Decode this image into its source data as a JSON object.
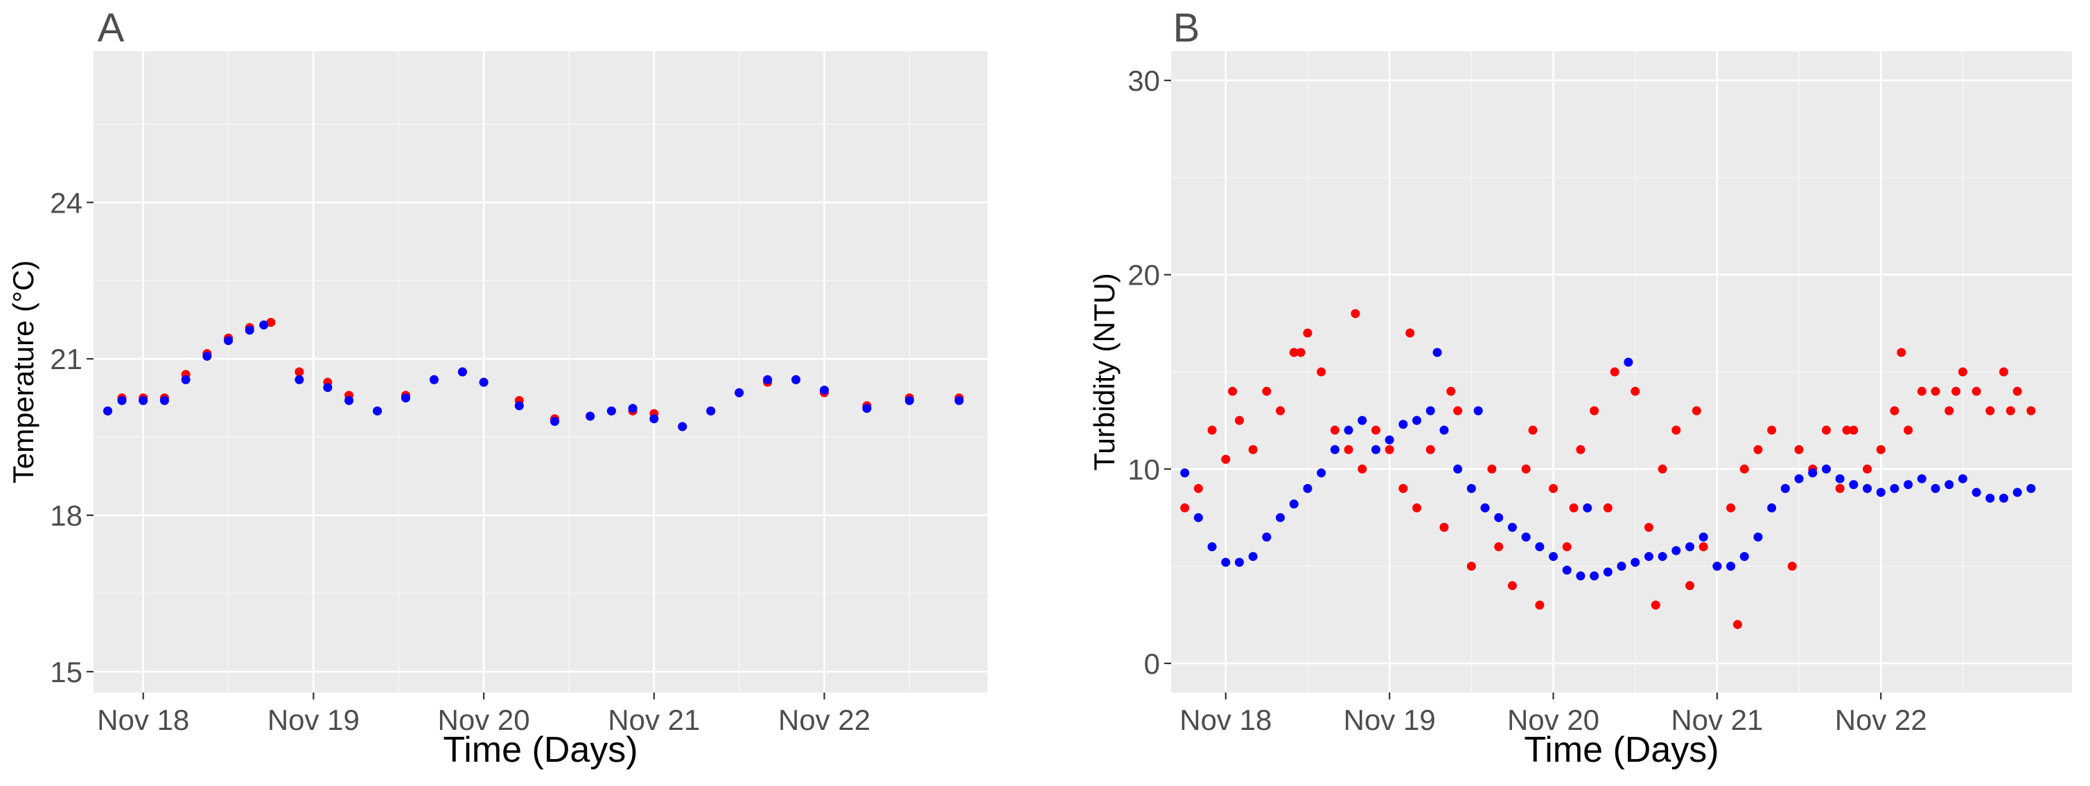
{
  "chart_data": [
    {
      "panel": "A",
      "type": "scatter",
      "xlabel": "Time (Days)",
      "ylabel": "Temperature (°C)",
      "x_type": "date",
      "xlim": [
        "2021-11-17 17:00",
        "2021-11-22 23:00"
      ],
      "ylim": [
        14.6,
        26.9
      ],
      "xticks": [
        {
          "value": "2021-11-18 00:00",
          "label": "Nov 18"
        },
        {
          "value": "2021-11-19 00:00",
          "label": "Nov 19"
        },
        {
          "value": "2021-11-20 00:00",
          "label": "Nov 20"
        },
        {
          "value": "2021-11-21 00:00",
          "label": "Nov 21"
        },
        {
          "value": "2021-11-22 00:00",
          "label": "Nov 22"
        }
      ],
      "yticks": [
        {
          "value": 15,
          "label": "15"
        },
        {
          "value": 18,
          "label": "18"
        },
        {
          "value": 21,
          "label": "21"
        },
        {
          "value": 24,
          "label": "24"
        }
      ],
      "grid": true,
      "legend": "none",
      "series": [
        {
          "color": "#ff0000",
          "x": [
            "2021-11-17 19:00",
            "2021-11-17 21:00",
            "2021-11-18 00:00",
            "2021-11-18 03:00",
            "2021-11-18 06:00",
            "2021-11-18 09:00",
            "2021-11-18 12:00",
            "2021-11-18 15:00",
            "2021-11-18 18:00",
            "2021-11-18 22:00",
            "2021-11-19 02:00",
            "2021-11-19 05:00",
            "2021-11-19 09:00",
            "2021-11-19 13:00",
            "2021-11-19 17:00",
            "2021-11-19 21:00",
            "2021-11-20 00:00",
            "2021-11-20 05:00",
            "2021-11-20 10:00",
            "2021-11-20 15:00",
            "2021-11-20 18:00",
            "2021-11-20 21:00",
            "2021-11-21 00:00",
            "2021-11-21 04:00",
            "2021-11-21 08:00",
            "2021-11-21 12:00",
            "2021-11-21 16:00",
            "2021-11-21 20:00",
            "2021-11-22 00:00",
            "2021-11-22 06:00",
            "2021-11-22 12:00",
            "2021-11-22 19:00"
          ],
          "y": [
            20.0,
            20.25,
            20.25,
            20.25,
            20.7,
            21.1,
            21.4,
            21.6,
            21.7,
            20.75,
            20.55,
            20.3,
            20.0,
            20.3,
            20.6,
            20.75,
            20.55,
            20.2,
            19.85,
            19.9,
            20.0,
            20.0,
            19.95,
            19.7,
            20.0,
            20.35,
            20.55,
            20.6,
            20.35,
            20.1,
            20.25,
            20.25
          ]
        },
        {
          "color": "#0000ff",
          "x": [
            "2021-11-17 19:00",
            "2021-11-17 21:00",
            "2021-11-18 00:00",
            "2021-11-18 03:00",
            "2021-11-18 06:00",
            "2021-11-18 09:00",
            "2021-11-18 12:00",
            "2021-11-18 15:00",
            "2021-11-18 17:00",
            "2021-11-18 22:00",
            "2021-11-19 02:00",
            "2021-11-19 05:00",
            "2021-11-19 09:00",
            "2021-11-19 13:00",
            "2021-11-19 17:00",
            "2021-11-19 21:00",
            "2021-11-20 00:00",
            "2021-11-20 05:00",
            "2021-11-20 10:00",
            "2021-11-20 15:00",
            "2021-11-20 18:00",
            "2021-11-20 21:00",
            "2021-11-21 00:00",
            "2021-11-21 04:00",
            "2021-11-21 08:00",
            "2021-11-21 12:00",
            "2021-11-21 16:00",
            "2021-11-21 20:00",
            "2021-11-22 00:00",
            "2021-11-22 06:00",
            "2021-11-22 12:00",
            "2021-11-22 19:00"
          ],
          "y": [
            20.0,
            20.2,
            20.2,
            20.2,
            20.6,
            21.05,
            21.35,
            21.55,
            21.65,
            20.6,
            20.45,
            20.2,
            20.0,
            20.25,
            20.6,
            20.75,
            20.55,
            20.1,
            19.8,
            19.9,
            20.0,
            20.05,
            19.85,
            19.7,
            20.0,
            20.35,
            20.6,
            20.6,
            20.4,
            20.05,
            20.2,
            20.2
          ]
        }
      ]
    },
    {
      "panel": "B",
      "type": "scatter",
      "xlabel": "Time (Days)",
      "ylabel": "Turbidity (NTU)",
      "x_type": "date",
      "xlim": [
        "2021-11-17 16:00",
        "2021-11-23 04:00"
      ],
      "ylim": [
        -1.5,
        31.5
      ],
      "xticks": [
        {
          "value": "2021-11-18 00:00",
          "label": "Nov 18"
        },
        {
          "value": "2021-11-19 00:00",
          "label": "Nov 19"
        },
        {
          "value": "2021-11-20 00:00",
          "label": "Nov 20"
        },
        {
          "value": "2021-11-21 00:00",
          "label": "Nov 21"
        },
        {
          "value": "2021-11-22 00:00",
          "label": "Nov 22"
        }
      ],
      "yticks": [
        {
          "value": 0,
          "label": "0"
        },
        {
          "value": 10,
          "label": "10"
        },
        {
          "value": 20,
          "label": "20"
        },
        {
          "value": 30,
          "label": "30"
        }
      ],
      "grid": true,
      "legend": "none",
      "series": [
        {
          "color": "#ff0000",
          "x": [
            "2021-11-17 18:00",
            "2021-11-17 20:00",
            "2021-11-17 22:00",
            "2021-11-18 00:00",
            "2021-11-18 02:00",
            "2021-11-18 04:00",
            "2021-11-18 06:00",
            "2021-11-18 08:00",
            "2021-11-18 10:00",
            "2021-11-18 12:00",
            "2021-11-18 14:00",
            "2021-11-18 16:00",
            "2021-11-18 18:00",
            "2021-11-18 20:00",
            "2021-11-18 22:00",
            "2021-11-19 00:00",
            "2021-11-19 02:00",
            "2021-11-19 04:00",
            "2021-11-19 06:00",
            "2021-11-19 08:00",
            "2021-11-19 10:00",
            "2021-11-19 12:00",
            "2021-11-19 14:00",
            "2021-11-19 16:00",
            "2021-11-19 18:00",
            "2021-11-19 20:00",
            "2021-11-19 22:00",
            "2021-11-20 00:00",
            "2021-11-20 02:00",
            "2021-11-20 04:00",
            "2021-11-20 06:00",
            "2021-11-20 08:00",
            "2021-11-20 10:00",
            "2021-11-20 12:00",
            "2021-11-20 14:00",
            "2021-11-20 16:00",
            "2021-11-20 18:00",
            "2021-11-20 20:00",
            "2021-11-20 22:00",
            "2021-11-21 00:00",
            "2021-11-21 02:00",
            "2021-11-21 04:00",
            "2021-11-21 06:00",
            "2021-11-21 08:00",
            "2021-11-21 10:00",
            "2021-11-21 12:00",
            "2021-11-21 14:00",
            "2021-11-21 16:00",
            "2021-11-21 18:00",
            "2021-11-21 20:00",
            "2021-11-21 22:00",
            "2021-11-22 00:00",
            "2021-11-22 02:00",
            "2021-11-22 04:00",
            "2021-11-22 06:00",
            "2021-11-22 08:00",
            "2021-11-22 10:00",
            "2021-11-22 12:00",
            "2021-11-22 14:00",
            "2021-11-22 16:00",
            "2021-11-22 18:00",
            "2021-11-22 20:00",
            "2021-11-22 22:00",
            "2021-11-18 01:00",
            "2021-11-18 11:00",
            "2021-11-18 19:00",
            "2021-11-19 03:00",
            "2021-11-19 09:00",
            "2021-11-19 15:00",
            "2021-11-19 21:00",
            "2021-11-20 03:00",
            "2021-11-20 09:00",
            "2021-11-20 15:00",
            "2021-11-20 21:00",
            "2021-11-21 03:00",
            "2021-11-21 11:00",
            "2021-11-21 19:00",
            "2021-11-22 03:00",
            "2021-11-22 11:00",
            "2021-11-22 19:00"
          ],
          "y": [
            8,
            9,
            12,
            10.5,
            12.5,
            11,
            14,
            13,
            16,
            17,
            15,
            12,
            11,
            10,
            12,
            11,
            9,
            8,
            11,
            7,
            13,
            5,
            8,
            6,
            4,
            10,
            3,
            9,
            6,
            11,
            13,
            8,
            5,
            14,
            7,
            10,
            12,
            4,
            6,
            5,
            8,
            10,
            11,
            12,
            9,
            11,
            10,
            12,
            9,
            12,
            10,
            11,
            13,
            12,
            14,
            14,
            13,
            15,
            14,
            13,
            15,
            14,
            13,
            14,
            16,
            18,
            17,
            14,
            10,
            12,
            8,
            15,
            3,
            13,
            2,
            5,
            12,
            16,
            14,
            13
          ]
        },
        {
          "color": "#0000ff",
          "x": [
            "2021-11-17 18:00",
            "2021-11-17 20:00",
            "2021-11-17 22:00",
            "2021-11-18 00:00",
            "2021-11-18 02:00",
            "2021-11-18 04:00",
            "2021-11-18 06:00",
            "2021-11-18 08:00",
            "2021-11-18 10:00",
            "2021-11-18 12:00",
            "2021-11-18 14:00",
            "2021-11-18 16:00",
            "2021-11-18 18:00",
            "2021-11-18 20:00",
            "2021-11-18 22:00",
            "2021-11-19 00:00",
            "2021-11-19 02:00",
            "2021-11-19 04:00",
            "2021-11-19 06:00",
            "2021-11-19 08:00",
            "2021-11-19 10:00",
            "2021-11-19 12:00",
            "2021-11-19 14:00",
            "2021-11-19 16:00",
            "2021-11-19 18:00",
            "2021-11-19 20:00",
            "2021-11-19 22:00",
            "2021-11-20 00:00",
            "2021-11-20 02:00",
            "2021-11-20 04:00",
            "2021-11-20 06:00",
            "2021-11-20 08:00",
            "2021-11-20 10:00",
            "2021-11-20 12:00",
            "2021-11-20 14:00",
            "2021-11-20 16:00",
            "2021-11-20 18:00",
            "2021-11-20 20:00",
            "2021-11-20 22:00",
            "2021-11-21 00:00",
            "2021-11-21 02:00",
            "2021-11-21 04:00",
            "2021-11-21 06:00",
            "2021-11-21 08:00",
            "2021-11-21 10:00",
            "2021-11-21 12:00",
            "2021-11-21 14:00",
            "2021-11-21 16:00",
            "2021-11-21 18:00",
            "2021-11-21 20:00",
            "2021-11-21 22:00",
            "2021-11-22 00:00",
            "2021-11-22 02:00",
            "2021-11-22 04:00",
            "2021-11-22 06:00",
            "2021-11-22 08:00",
            "2021-11-22 10:00",
            "2021-11-22 12:00",
            "2021-11-22 14:00",
            "2021-11-22 16:00",
            "2021-11-22 18:00",
            "2021-11-22 20:00",
            "2021-11-22 22:00",
            "2021-11-19 07:00",
            "2021-11-19 13:00",
            "2021-11-20 05:00",
            "2021-11-20 11:00"
          ],
          "y": [
            9.8,
            7.5,
            6,
            5.2,
            5.2,
            5.5,
            6.5,
            7.5,
            8.2,
            9,
            9.8,
            11,
            12,
            12.5,
            11,
            11.5,
            12.3,
            12.5,
            13,
            12,
            10,
            9,
            8,
            7.5,
            7,
            6.5,
            6,
            5.5,
            4.8,
            4.5,
            4.5,
            4.7,
            5,
            5.2,
            5.5,
            5.5,
            5.8,
            6,
            6.5,
            5,
            5,
            5.5,
            6.5,
            8,
            9,
            9.5,
            9.8,
            10,
            9.5,
            9.2,
            9,
            8.8,
            9,
            9.2,
            9.5,
            9,
            9.2,
            9.5,
            8.8,
            8.5,
            8.5,
            8.8,
            9,
            16,
            13,
            8,
            15.5
          ]
        }
      ]
    }
  ]
}
